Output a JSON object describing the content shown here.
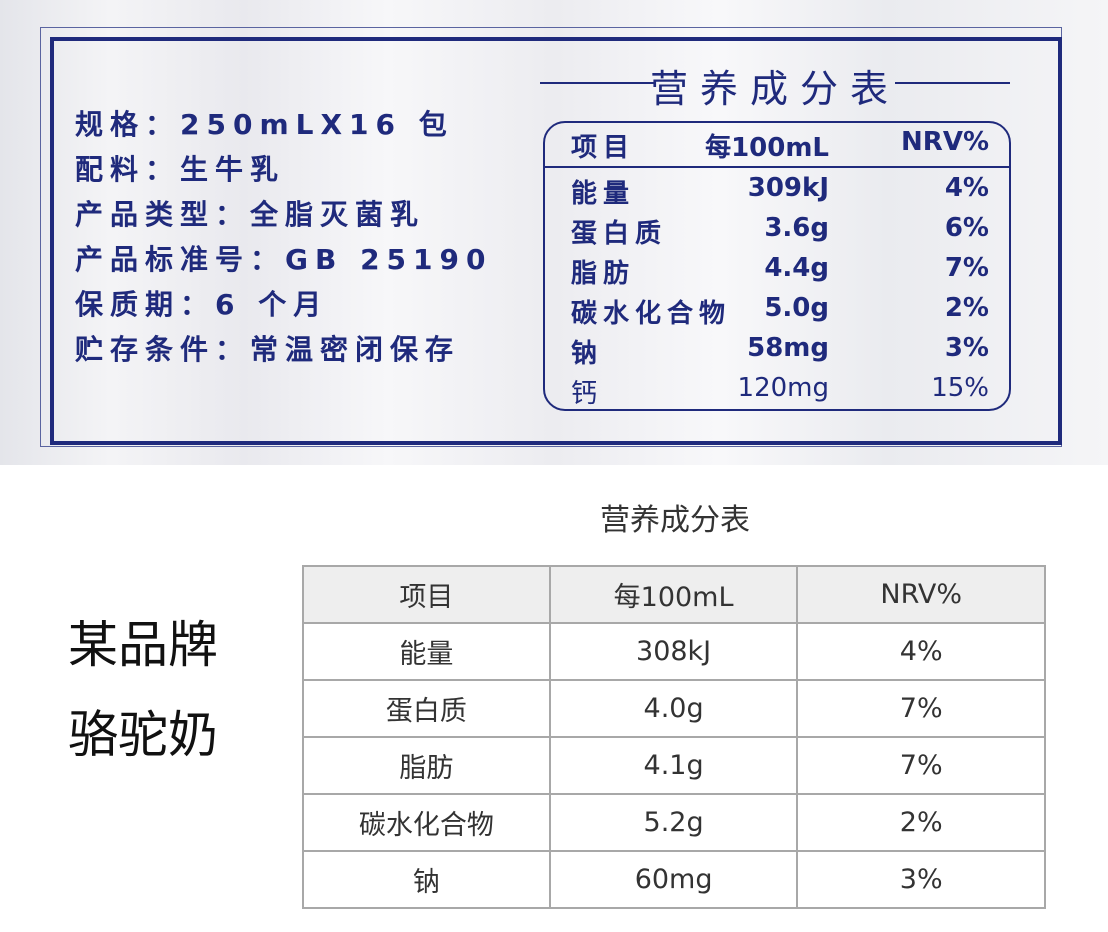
{
  "package_label": {
    "specs": [
      "规格：250mLX16 包",
      "配料：生牛乳",
      "产品类型：全脂灭菌乳",
      "产品标准号：GB 25190",
      "保质期：6 个月",
      "贮存条件：常温密闭保存"
    ],
    "nutrition_title": "营养成分表",
    "headers": [
      "项目",
      "每100mL",
      "NRV%"
    ],
    "rows": [
      [
        "能量",
        "309kJ",
        "4%"
      ],
      [
        "蛋白质",
        "3.6g",
        "6%"
      ],
      [
        "脂肪",
        "4.4g",
        "7%"
      ],
      [
        "碳水化合物",
        "5.0g",
        "2%"
      ],
      [
        "钠",
        "58mg",
        "3%"
      ],
      [
        "钙",
        "120mg",
        "15%"
      ]
    ],
    "accent_color": "#1f2a7c"
  },
  "comparison": {
    "brand_lines": [
      "某品牌",
      "骆驼奶"
    ],
    "nutrition_title": "营养成分表",
    "headers": [
      "项目",
      "每100mL",
      "NRV%"
    ],
    "rows": [
      [
        "能量",
        "308kJ",
        "4%"
      ],
      [
        "蛋白质",
        "4.0g",
        "7%"
      ],
      [
        "脂肪",
        "4.1g",
        "7%"
      ],
      [
        "碳水化合物",
        "5.2g",
        "2%"
      ],
      [
        "钠",
        "60mg",
        "3%"
      ]
    ]
  }
}
